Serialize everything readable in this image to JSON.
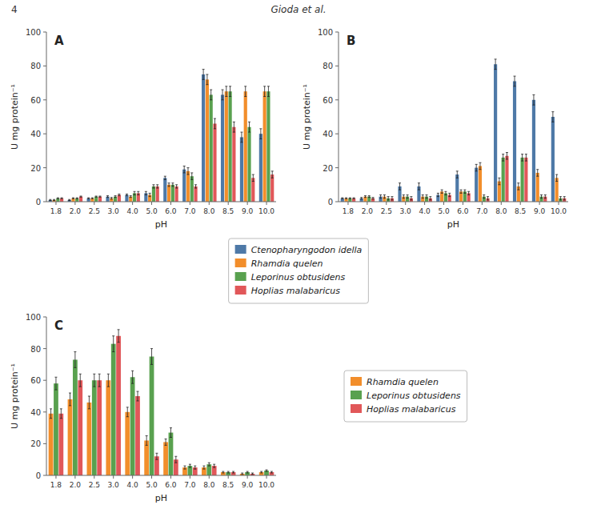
{
  "chart_data": [
    {
      "type": "bar",
      "title": "A",
      "x_label": "pH",
      "y_label": "U mg protein⁻¹",
      "annotations": [
        "Gioda et al.",
        "4"
      ],
      "categories": [
        "1.8",
        "2.0",
        "2.5",
        "3.0",
        "4.0",
        "5.0",
        "6.0",
        "7.0",
        "8.0",
        "8.5",
        "9.0",
        "10.0"
      ],
      "series": [
        {
          "name": "Ctenopharyngodon idella",
          "color": "#4e79a7",
          "values": [
            1,
            1,
            2,
            3,
            4,
            5,
            14,
            19,
            75,
            63,
            38,
            40
          ],
          "errors": [
            0.3,
            0.3,
            0.3,
            0.5,
            0.5,
            1,
            1,
            2,
            3,
            3,
            3,
            3
          ]
        },
        {
          "name": "Rhamdia quelen",
          "color": "#f28e2b",
          "values": [
            1,
            2,
            2,
            2,
            3,
            4,
            10,
            18,
            72,
            65,
            65,
            65
          ],
          "errors": [
            0.3,
            0.3,
            0.3,
            0.5,
            0.5,
            1,
            1,
            2,
            3,
            3,
            3,
            3
          ]
        },
        {
          "name": "Leporinus obtusidens",
          "color": "#59a14f",
          "values": [
            2,
            2,
            3,
            3,
            5,
            9,
            10,
            15,
            63,
            65,
            44,
            65
          ],
          "errors": [
            0.3,
            0.3,
            0.3,
            0.5,
            1,
            1,
            1,
            2,
            3,
            3,
            3,
            3
          ]
        },
        {
          "name": "Hoplias malabaricus",
          "color": "#e15759",
          "values": [
            2,
            3,
            3,
            4,
            5,
            9,
            9,
            9,
            46,
            44,
            14,
            16
          ],
          "errors": [
            0.3,
            0.3,
            0.3,
            0.5,
            1,
            1,
            1,
            1,
            3,
            3,
            2,
            2
          ]
        }
      ],
      "ylim": [
        0,
        100
      ],
      "yticks": [
        0,
        20,
        40,
        60,
        80,
        100
      ],
      "legend": "bottom"
    },
    {
      "type": "bar",
      "title": "B",
      "x_label": "pH",
      "y_label": "U mg protein⁻¹",
      "categories": [
        "1.8",
        "2.0",
        "2.5",
        "3.0",
        "4.0",
        "5.0",
        "6.0",
        "7.0",
        "8.0",
        "8.5",
        "9.0",
        "10.0"
      ],
      "series": [
        {
          "name": "Ctenopharyngodon idella",
          "color": "#4e79a7",
          "values": [
            2,
            2,
            3,
            9,
            9,
            4,
            16,
            20,
            81,
            71,
            60,
            50
          ],
          "errors": [
            0.3,
            0.5,
            1,
            2,
            2,
            1,
            2,
            2,
            3,
            3,
            3,
            3
          ]
        },
        {
          "name": "Rhamdia quelen",
          "color": "#f28e2b",
          "values": [
            2,
            3,
            3,
            3,
            3,
            6,
            6,
            21,
            12,
            9,
            17,
            14
          ],
          "errors": [
            0.3,
            0.5,
            1,
            1,
            1,
            1,
            1,
            2,
            2,
            2,
            2,
            2
          ]
        },
        {
          "name": "Leporinus obtusidens",
          "color": "#59a14f",
          "values": [
            2,
            3,
            2,
            3,
            3,
            5,
            6,
            3,
            26,
            26,
            3,
            2
          ],
          "errors": [
            0.3,
            0.5,
            1,
            1,
            1,
            1,
            1,
            1,
            2,
            2,
            1,
            1
          ]
        },
        {
          "name": "Hoplias malabaricus",
          "color": "#e15759",
          "values": [
            2,
            2,
            2,
            2,
            2,
            4,
            5,
            2,
            27,
            26,
            3,
            2
          ],
          "errors": [
            0.3,
            0.5,
            1,
            1,
            1,
            1,
            1,
            1,
            2,
            2,
            1,
            1
          ]
        }
      ],
      "ylim": [
        0,
        100
      ],
      "yticks": [
        0,
        20,
        40,
        60,
        80,
        100
      ]
    },
    {
      "type": "bar",
      "title": "C",
      "x_label": "pH",
      "y_label": "U mg protein⁻¹",
      "categories": [
        "1.8",
        "2.0",
        "2.5",
        "3.0",
        "4.0",
        "5.0",
        "6.0",
        "7.0",
        "8.0",
        "8.5",
        "9.0",
        "10.0"
      ],
      "series": [
        {
          "name": "Rhamdia quelen",
          "color": "#f28e2b",
          "values": [
            39,
            48,
            46,
            60,
            40,
            22,
            21,
            5,
            5,
            2,
            1,
            2
          ],
          "errors": [
            3,
            4,
            4,
            4,
            3,
            3,
            2,
            1,
            1,
            0.5,
            0.5,
            0.5
          ]
        },
        {
          "name": "Leporinus obtusidens",
          "color": "#59a14f",
          "values": [
            58,
            73,
            60,
            83,
            62,
            75,
            27,
            6,
            7,
            2,
            2,
            3
          ],
          "errors": [
            4,
            5,
            4,
            5,
            4,
            5,
            3,
            1,
            1,
            0.5,
            0.5,
            0.5
          ]
        },
        {
          "name": "Hoplias malabaricus",
          "color": "#e15759",
          "values": [
            39,
            60,
            60,
            88,
            50,
            12,
            10,
            5,
            6,
            2,
            1,
            2
          ],
          "errors": [
            3,
            4,
            4,
            4,
            3,
            2,
            2,
            1,
            1,
            0.5,
            0.5,
            0.5
          ]
        }
      ],
      "ylim": [
        0,
        100
      ],
      "yticks": [
        0,
        20,
        40,
        60,
        80,
        100
      ],
      "legend": "right"
    }
  ]
}
